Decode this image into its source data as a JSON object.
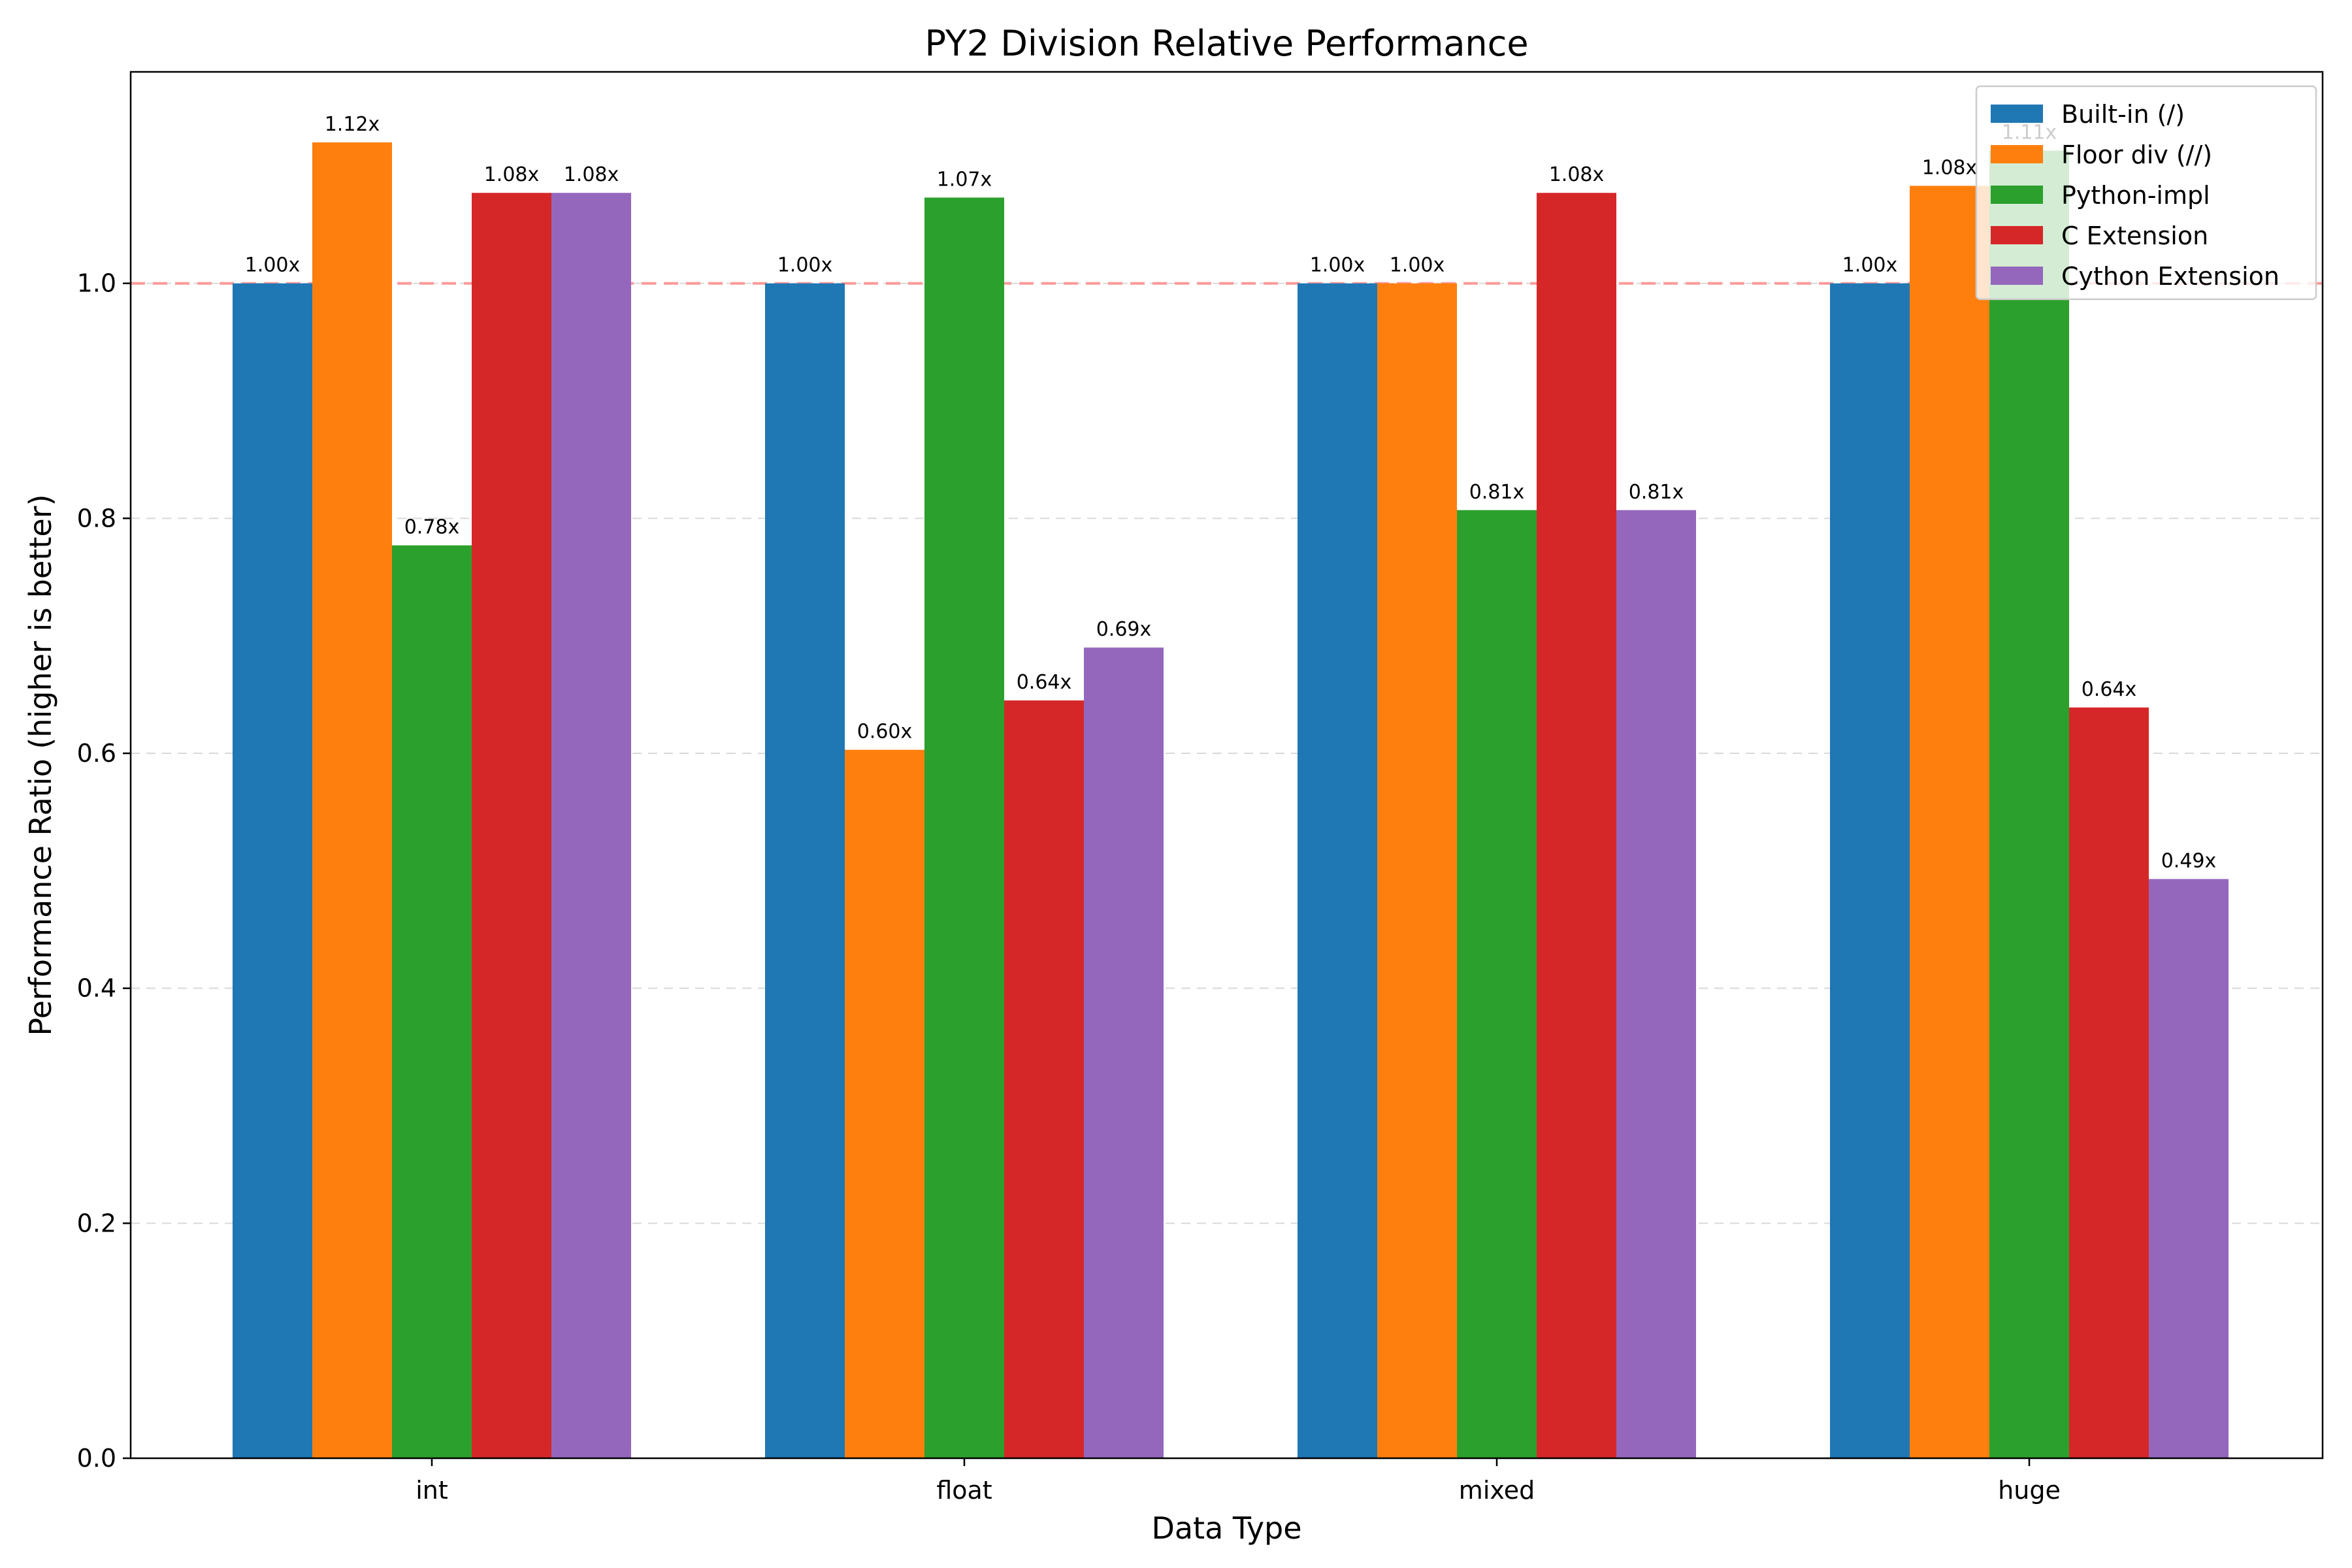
{
  "chart_data": {
    "type": "bar",
    "title": "PY2 Division Relative Performance",
    "xlabel": "Data Type",
    "ylabel": "Performance Ratio (higher is better)",
    "categories": [
      "int",
      "float",
      "mixed",
      "huge"
    ],
    "ylim": [
      0,
      1.18
    ],
    "yticks": [
      "0.0",
      "0.2",
      "0.4",
      "0.6",
      "0.8",
      "1.0"
    ],
    "ytick_values": [
      0,
      0.2,
      0.4,
      0.6,
      0.8,
      1.0
    ],
    "grid": "horizontal dashed",
    "reference_line": {
      "value": 1.0,
      "color": "#ff9999",
      "style": "dashed"
    },
    "legend_position": "top-right",
    "series": [
      {
        "name": "Built-in (/)",
        "color": "#1f77b4",
        "values": [
          1.0,
          1.0,
          1.0,
          1.0
        ],
        "labels": [
          "1.00x",
          "1.00x",
          "1.00x",
          "1.00x"
        ]
      },
      {
        "name": "Floor div (//)",
        "color": "#ff7f0e",
        "values": [
          1.12,
          0.603,
          1.0,
          1.083
        ],
        "labels": [
          "1.12x",
          "0.60x",
          "1.00x",
          "1.08x"
        ]
      },
      {
        "name": "Python-impl",
        "color": "#2ca02c",
        "values": [
          0.777,
          1.073,
          0.807,
          1.113
        ],
        "labels": [
          "0.78x",
          "1.07x",
          "0.81x",
          "1.11x"
        ]
      },
      {
        "name": "C Extension",
        "color": "#d62728",
        "values": [
          1.077,
          0.645,
          1.077,
          0.639
        ],
        "labels": [
          "1.08x",
          "0.64x",
          "1.08x",
          "0.64x"
        ]
      },
      {
        "name": "Cython Extension",
        "color": "#9467bd",
        "values": [
          1.077,
          0.69,
          0.807,
          0.493
        ],
        "labels": [
          "1.08x",
          "0.69x",
          "0.81x",
          "0.49x"
        ]
      }
    ]
  }
}
